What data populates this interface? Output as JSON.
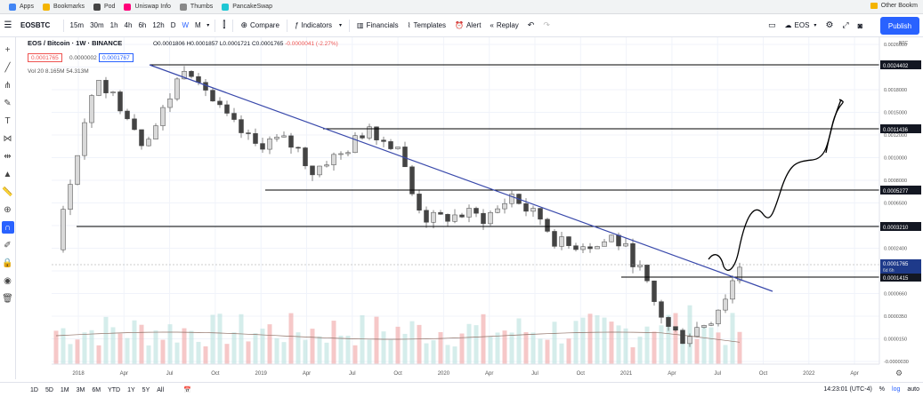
{
  "browser": {
    "bookmarks": [
      {
        "label": "Apps",
        "color": "#4285f4"
      },
      {
        "label": "Bookmarks",
        "color": "#f4b400"
      },
      {
        "label": "Pod",
        "color": "#444444"
      },
      {
        "label": "Uniswap Info",
        "color": "#ff007a"
      },
      {
        "label": "Thumbs",
        "color": "#888888"
      },
      {
        "label": "PancakeSwap",
        "color": "#1fc7d4"
      }
    ],
    "other_bookmarks": "Other Bookm"
  },
  "toolbar": {
    "symbol": "EOSBTC",
    "intervals": [
      "15m",
      "30m",
      "1h",
      "4h",
      "6h",
      "12h",
      "D",
      "W",
      "M"
    ],
    "active_interval": "W",
    "compare": "Compare",
    "indicators": "Indicators",
    "financials": "Financials",
    "templates": "Templates",
    "alert": "Alert",
    "replay": "Replay",
    "layout_name": "EOS",
    "publish": "Publish"
  },
  "legend": {
    "symbol": "EOS / Bitcoin · 1W · BINANCE",
    "ohlc": "O0.0001806 H0.0001857 L0.0001721 C0.0001765",
    "change": "-0.0000041 (-2.27%)",
    "bid": "0.0001765",
    "spread": "0.0000002",
    "ask": "0.0001767",
    "volume": "Vol 20  8.165M  54.313M"
  },
  "chart_data": {
    "type": "candlestick",
    "symbol": "EOSBTC",
    "interval": "1W",
    "exchange": "BINANCE",
    "price_axis_unit": "BTC",
    "x_ticks": [
      "2018",
      "Apr",
      "Jul",
      "Oct",
      "2019",
      "Apr",
      "Jul",
      "Oct",
      "2020",
      "Apr",
      "Jul",
      "Oct",
      "2021",
      "Apr",
      "Jul",
      "Oct",
      "2022",
      "Apr"
    ],
    "y_ticks": [
      "0.0026000",
      "0.0022000",
      "0.0018000",
      "0.0015000",
      "0.0012000",
      "0.0010000",
      "0.0008000",
      "0.0006500",
      "0.0004000",
      "0.0002400",
      "0.0000902",
      "0.0000660",
      "0.0000350",
      "0.0000150",
      "-0.0000030"
    ],
    "horizontal_levels": [
      "0.0024402",
      "0.0011436",
      "0.0005277",
      "0.0003210",
      "0.0001415"
    ],
    "current_price": "0.0001765",
    "current_price_sub": "6d 6h",
    "close_path": [
      [
        0,
        0.00022
      ],
      [
        2,
        0.00055
      ],
      [
        4,
        0.0011
      ],
      [
        6,
        0.0021
      ],
      [
        8,
        0.0016
      ],
      [
        10,
        0.0013
      ],
      [
        12,
        0.0009
      ],
      [
        14,
        0.0011
      ],
      [
        16,
        0.0016
      ],
      [
        18,
        0.0024
      ],
      [
        20,
        0.0021
      ],
      [
        22,
        0.0015
      ],
      [
        24,
        0.0012
      ],
      [
        26,
        0.001
      ],
      [
        28,
        0.00085
      ],
      [
        30,
        0.0009
      ],
      [
        32,
        0.0009
      ],
      [
        34,
        0.0008
      ],
      [
        36,
        0.0006
      ],
      [
        38,
        0.0007
      ],
      [
        40,
        0.00075
      ],
      [
        42,
        0.0009
      ],
      [
        44,
        0.0011
      ],
      [
        46,
        0.0009
      ],
      [
        48,
        0.00085
      ],
      [
        50,
        0.00045
      ],
      [
        52,
        0.00033
      ],
      [
        54,
        0.00033
      ],
      [
        56,
        0.00034
      ],
      [
        58,
        0.00035
      ],
      [
        60,
        0.00033
      ],
      [
        62,
        0.00037
      ],
      [
        64,
        0.00045
      ],
      [
        66,
        0.00037
      ],
      [
        68,
        0.00033
      ],
      [
        70,
        0.00025
      ],
      [
        72,
        0.00023
      ],
      [
        74,
        0.00024
      ],
      [
        76,
        0.00023
      ],
      [
        78,
        0.00026
      ],
      [
        80,
        0.00022
      ],
      [
        82,
        0.00017
      ],
      [
        84,
        0.00011
      ],
      [
        86,
        8e-05
      ],
      [
        88,
        7e-05
      ],
      [
        90,
        8e-05
      ],
      [
        92,
        9e-05
      ],
      [
        94,
        0.00012
      ],
      [
        96,
        0.00018
      ]
    ],
    "volume_label": "Vol 20"
  },
  "bottom": {
    "ranges": [
      "1D",
      "5D",
      "1M",
      "3M",
      "6M",
      "YTD",
      "1Y",
      "5Y",
      "All"
    ],
    "time": "14:23:01 (UTC-4)",
    "percent": "%",
    "log": "log",
    "auto": "auto"
  },
  "colors": {
    "up": "#26a69a",
    "down": "#ef5350",
    "trendline": "#3949ab",
    "accent": "#2962ff"
  }
}
